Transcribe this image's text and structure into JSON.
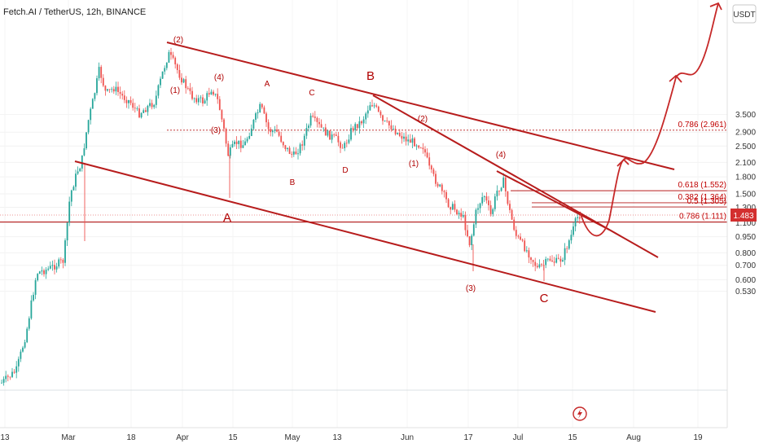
{
  "chart_data": {
    "type": "candlestick",
    "title": "Fetch.AI / TetherUS, 12h, BINANCE",
    "currency_label": "USDT",
    "scale": "log",
    "ylim": [
      0.53,
      4.0
    ],
    "y_ticks": [
      "3.500",
      "2.900",
      "2.500",
      "2.100",
      "1.800",
      "1.500",
      "1.300",
      "1.100",
      "0.950",
      "0.800",
      "0.700",
      "0.600",
      "0.530"
    ],
    "x_ticks": [
      "13",
      "Mar",
      "18",
      "Apr",
      "15",
      "May",
      "13",
      "Jun",
      "17",
      "Jul",
      "15",
      "Aug",
      "19"
    ],
    "current_price": "1.483",
    "fib_levels": [
      {
        "label": "0.786 (2.961)",
        "value": 2.961
      },
      {
        "label": "0.618 (1.552)",
        "value": 1.552
      },
      {
        "label": "0.382 (1.364)",
        "value": 1.364
      },
      {
        "label": "0.5 (1.305)",
        "value": 1.305
      },
      {
        "label": "0.786 (1.111)",
        "value": 1.111
      }
    ],
    "wave_labels": [
      {
        "text": "(2)",
        "size": "small"
      },
      {
        "text": "(4)",
        "size": "small"
      },
      {
        "text": "(1)",
        "size": "small"
      },
      {
        "text": "(3)",
        "size": "small"
      },
      {
        "text": "A",
        "size": "big"
      },
      {
        "text": "A",
        "size": "small"
      },
      {
        "text": "B",
        "size": "small"
      },
      {
        "text": "C",
        "size": "small"
      },
      {
        "text": "D",
        "size": "small"
      },
      {
        "text": "B",
        "size": "big"
      },
      {
        "text": "(2)",
        "size": "small"
      },
      {
        "text": "(1)",
        "size": "small"
      },
      {
        "text": "(4)",
        "size": "small"
      },
      {
        "text": "(3)",
        "size": "small"
      },
      {
        "text": "C",
        "size": "big"
      }
    ],
    "projection_target": 2.961
  }
}
